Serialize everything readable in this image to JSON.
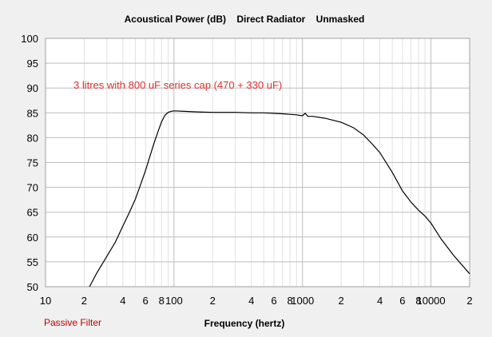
{
  "chart_data": {
    "type": "line",
    "title": "Acoustical Power (dB)    Direct Radiator    Unmasked",
    "xlabel": "Frequency (hertz)",
    "ylabel": "",
    "x_scale": "log",
    "xlim": [
      10,
      20000
    ],
    "ylim": [
      50,
      100
    ],
    "x_ticks": [
      10,
      20,
      40,
      60,
      80,
      100,
      200,
      400,
      600,
      800,
      1000,
      2000,
      4000,
      6000,
      8000,
      10000,
      20000
    ],
    "x_tick_labels": [
      "10",
      "2",
      "4",
      "6",
      "8",
      "100",
      "2",
      "4",
      "6",
      "8",
      "1000",
      "2",
      "4",
      "6",
      "8",
      "10000",
      "2"
    ],
    "y_ticks": [
      50,
      55,
      60,
      65,
      70,
      75,
      80,
      85,
      90,
      95,
      100
    ],
    "y_tick_labels": [
      "50",
      "55",
      "60",
      "65",
      "70",
      "75",
      "80",
      "85",
      "90",
      "95",
      "100"
    ],
    "grid": true,
    "annotation": "3 litres with 800 uF series cap (470 + 330 uF)",
    "footer_label": "Passive Filter",
    "line_color": "#000000",
    "annotation_color": "#e03030",
    "series": [
      {
        "x": [
          22,
          25,
          30,
          35,
          40,
          45,
          50,
          55,
          60,
          65,
          70,
          75,
          80,
          85,
          90,
          95,
          100,
          120,
          150,
          200,
          300,
          400,
          500,
          600,
          700,
          800,
          900,
          1000,
          1050,
          1100,
          1200,
          1500,
          2000,
          2500,
          3000,
          3500,
          4000,
          5000,
          6000,
          7000,
          8000,
          9000,
          10000,
          12000,
          15000,
          20000
        ],
        "y": [
          50,
          52.7,
          56.1,
          59.0,
          62.2,
          65.0,
          67.6,
          70.6,
          73.4,
          76.3,
          78.9,
          81.2,
          83.2,
          84.5,
          85.1,
          85.3,
          85.4,
          85.3,
          85.2,
          85.1,
          85.1,
          85.0,
          85.0,
          84.9,
          84.8,
          84.7,
          84.6,
          84.4,
          84.9,
          84.3,
          84.3,
          83.9,
          83.1,
          82.0,
          80.5,
          78.7,
          77.0,
          73.0,
          69.3,
          67.0,
          65.4,
          64.2,
          62.8,
          59.6,
          56.3,
          52.6
        ]
      }
    ]
  }
}
